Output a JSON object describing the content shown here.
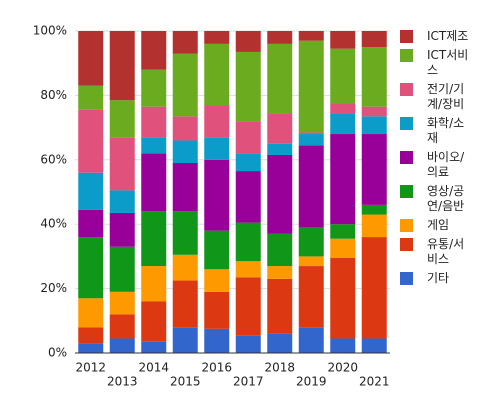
{
  "chart_data": {
    "type": "stacked_bar",
    "categories": [
      "2012",
      "2013",
      "2014",
      "2015",
      "2016",
      "2017",
      "2018",
      "2019",
      "2020",
      "2021"
    ],
    "series": [
      {
        "name": "ICT제조",
        "color": "#b3312f",
        "values": [
          17,
          21.5,
          12,
          7,
          4,
          6.5,
          4,
          3,
          5.5,
          5
        ]
      },
      {
        "name": "ICT서비스",
        "color": "#6aab1f",
        "values": [
          7.5,
          11.5,
          11.5,
          19.5,
          19,
          21.5,
          21.5,
          28.5,
          17,
          18.5
        ]
      },
      {
        "name": "전기/기계/장비",
        "color": "#e0517b",
        "values": [
          19.5,
          16.5,
          9.5,
          7.5,
          10,
          10,
          9.5,
          0.5,
          3,
          3
        ]
      },
      {
        "name": "화학/소재",
        "color": "#0b9cc9",
        "values": [
          11.5,
          7,
          5,
          7,
          7,
          5.5,
          3.5,
          3.5,
          6.5,
          5.5
        ]
      },
      {
        "name": "바이오/의료",
        "color": "#990099",
        "values": [
          8.5,
          10.5,
          18,
          15,
          22,
          16,
          24.5,
          25.5,
          28,
          22
        ]
      },
      {
        "name": "영상/공연/음반",
        "color": "#109618",
        "values": [
          19,
          14,
          17,
          13.5,
          12,
          12,
          10,
          9,
          4.5,
          3
        ]
      },
      {
        "name": "게임",
        "color": "#ff9900",
        "values": [
          9,
          7,
          11,
          8,
          7,
          5,
          4,
          3,
          6,
          7
        ]
      },
      {
        "name": "유통/서비스",
        "color": "#dc3912",
        "values": [
          5,
          7.5,
          12.5,
          14.5,
          11.5,
          18,
          17,
          19,
          25,
          31.5
        ]
      },
      {
        "name": "기타",
        "color": "#3366cc",
        "values": [
          3,
          4.5,
          3.5,
          8,
          7.5,
          5.5,
          6,
          8,
          4.5,
          4.5
        ]
      }
    ],
    "ylim": [
      0,
      100
    ],
    "yticks": [
      {
        "value": 0,
        "label": "0%"
      },
      {
        "value": 20,
        "label": "20%"
      },
      {
        "value": 40,
        "label": "40%"
      },
      {
        "value": 60,
        "label": "60%"
      },
      {
        "value": 80,
        "label": "80%"
      },
      {
        "value": 100,
        "label": "100%"
      }
    ],
    "grid": true,
    "legend": "right"
  }
}
